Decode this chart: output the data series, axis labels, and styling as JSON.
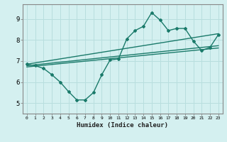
{
  "xlabel": "Humidex (Indice chaleur)",
  "bg_color": "#d4f0f0",
  "line_color": "#1a7a6a",
  "grid_color": "#b8dede",
  "xlim": [
    -0.5,
    23.5
  ],
  "ylim": [
    4.5,
    9.7
  ],
  "yticks": [
    5,
    6,
    7,
    8,
    9
  ],
  "xticks": [
    0,
    1,
    2,
    3,
    4,
    5,
    6,
    7,
    8,
    9,
    10,
    11,
    12,
    13,
    14,
    15,
    16,
    17,
    18,
    19,
    20,
    21,
    22,
    23
  ],
  "line1_x": [
    0,
    1,
    2,
    3,
    4,
    5,
    6,
    7,
    8,
    9,
    10,
    11,
    12,
    13,
    14,
    15,
    16,
    17,
    18,
    19,
    20,
    21,
    22,
    23
  ],
  "line1_y": [
    6.85,
    6.78,
    6.65,
    6.35,
    6.0,
    5.55,
    5.15,
    5.15,
    5.5,
    6.35,
    7.05,
    7.1,
    8.05,
    8.45,
    8.65,
    9.3,
    8.95,
    8.45,
    8.55,
    8.55,
    7.95,
    7.5,
    7.65,
    8.25
  ],
  "trend1_x": [
    0,
    23
  ],
  "trend1_y": [
    6.85,
    8.3
  ],
  "trend2_x": [
    0,
    23
  ],
  "trend2_y": [
    6.78,
    7.73
  ],
  "trend3_x": [
    0,
    23
  ],
  "trend3_y": [
    6.72,
    7.62
  ]
}
